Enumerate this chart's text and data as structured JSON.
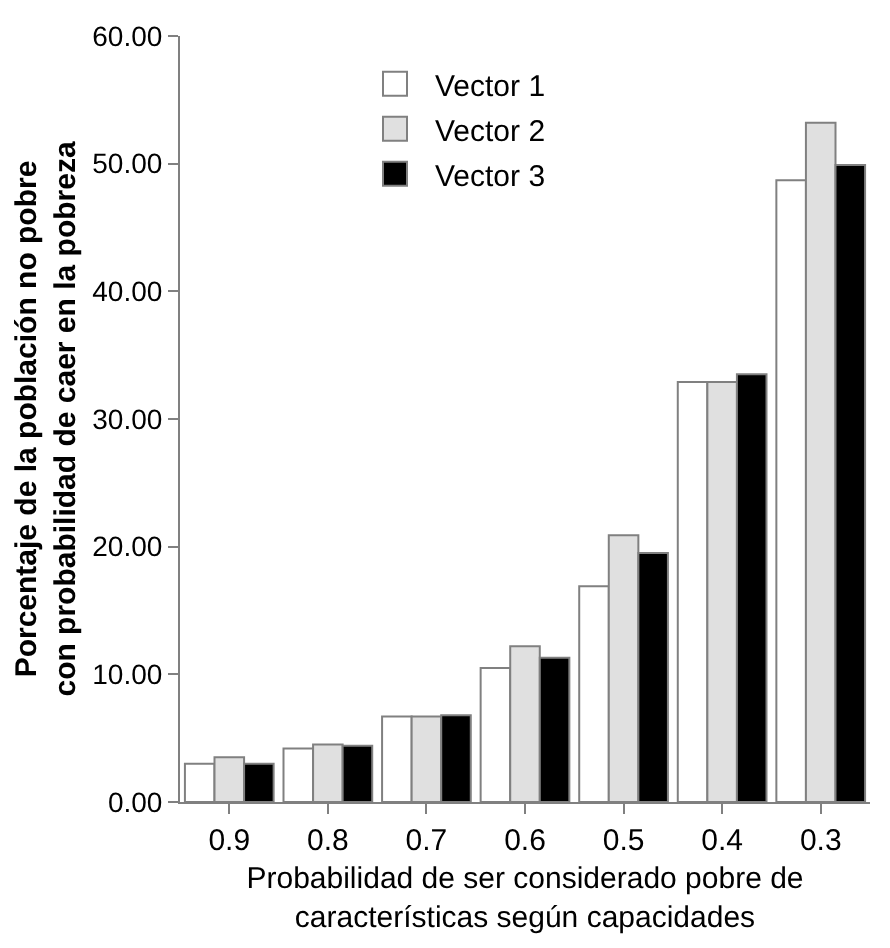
{
  "chart_data": {
    "type": "bar",
    "ylabel": "Porcentaje de la población no pobre\ncon probabilidad de caer en la pobreza",
    "xlabel": "Probabilidad de ser considerado pobre de\ncaracterísticas según capacidades",
    "categories": [
      "0.9",
      "0.8",
      "0.7",
      "0.6",
      "0.5",
      "0.4",
      "0.3"
    ],
    "series": [
      {
        "name": "Vector 1",
        "color": "#ffffff",
        "values": [
          3.0,
          4.2,
          6.7,
          10.5,
          16.9,
          32.9,
          48.7
        ]
      },
      {
        "name": "Vector 2",
        "color": "#e0e0e0",
        "values": [
          3.5,
          4.5,
          6.7,
          12.2,
          20.9,
          32.9,
          53.2
        ]
      },
      {
        "name": "Vector 3",
        "color": "#000000",
        "values": [
          3.0,
          4.4,
          6.8,
          11.3,
          19.5,
          33.5,
          49.9
        ]
      }
    ],
    "ylim": [
      0,
      60
    ],
    "yticks": [
      {
        "value": 0,
        "label": "0.00"
      },
      {
        "value": 10,
        "label": "10.00"
      },
      {
        "value": 20,
        "label": "20.00"
      },
      {
        "value": 30,
        "label": "30.00"
      },
      {
        "value": 40,
        "label": "40.00"
      },
      {
        "value": 50,
        "label": "50.00"
      },
      {
        "value": 60,
        "label": "60.00"
      }
    ],
    "legend": "top"
  }
}
